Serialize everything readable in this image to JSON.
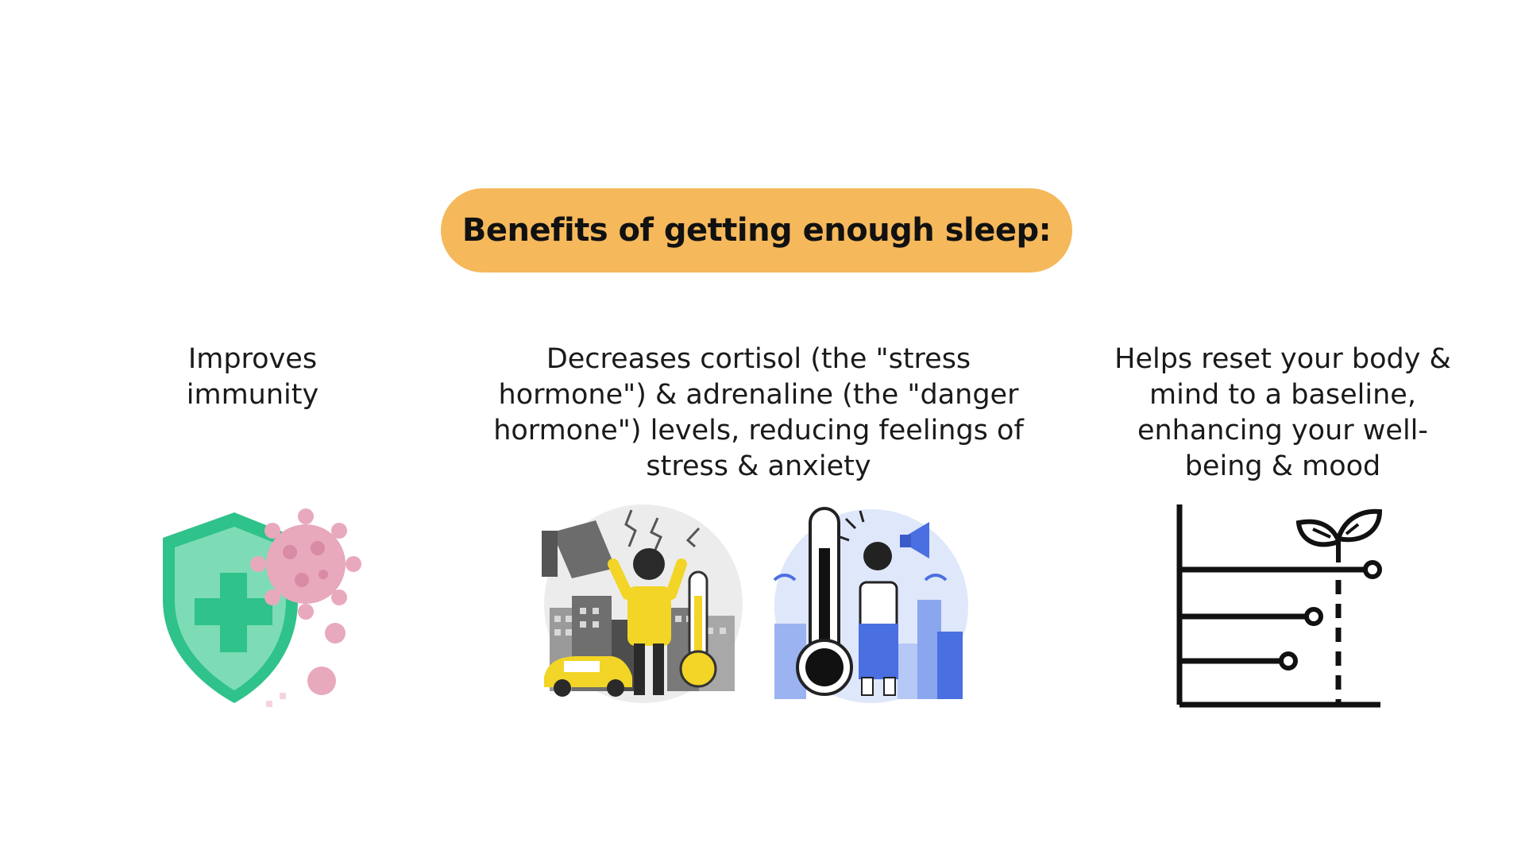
{
  "header": {
    "title": "Benefits of getting enough sleep:"
  },
  "benefits": [
    {
      "text": "Improves immunity",
      "icon": "shield-virus-icon"
    },
    {
      "text": "Decreases cortisol (the \"stress hormone\") & adrenaline (the \"danger hormone\") levels, reducing feelings of stress & anxiety",
      "icons": [
        "stressed-man-city-illustration",
        "stressed-woman-thermometer-illustration"
      ]
    },
    {
      "text": "Helps reset your body & mind to a baseline, enhancing your well-being & mood",
      "icon": "growth-chart-plant-icon"
    }
  ],
  "colors": {
    "title_pill": "#f5b85b",
    "shield_green": "#2fc28a",
    "virus_pink": "#e8a9bd",
    "stress_yellow": "#f2d526",
    "anxiety_blue": "#4a6fe0"
  }
}
